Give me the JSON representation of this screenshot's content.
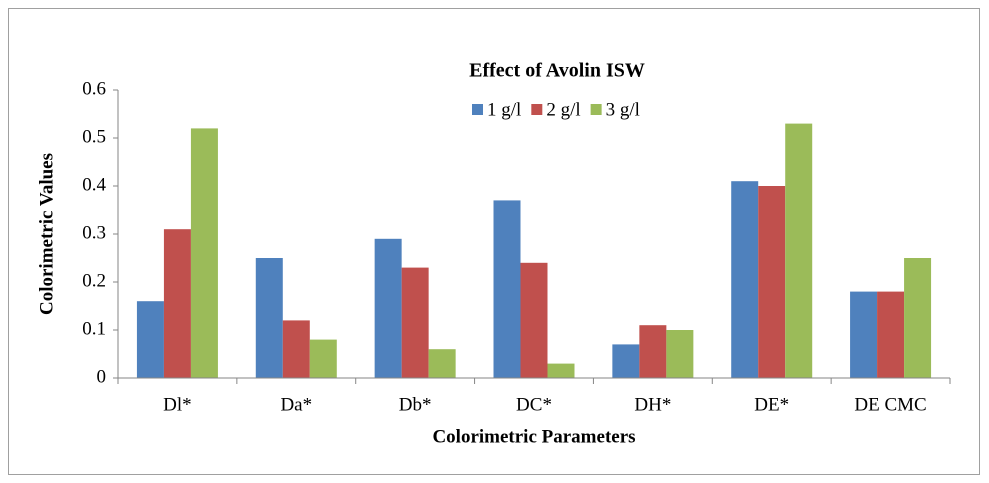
{
  "chart_data": {
    "type": "bar",
    "title": "Effect of Avolin  ISW",
    "x_label": "Colorimetric  Parameters",
    "y_label": "Colorimetric  Values",
    "categories": [
      "Dl*",
      "Da*",
      "Db*",
      "DC*",
      "DH*",
      "DE*",
      "DE CMC"
    ],
    "series": [
      {
        "name": "1 g/l",
        "color": "#4f81bd",
        "values": [
          0.16,
          0.25,
          0.29,
          0.37,
          0.07,
          0.41,
          0.18
        ]
      },
      {
        "name": "2 g/l",
        "color": "#c0504d",
        "values": [
          0.31,
          0.12,
          0.23,
          0.24,
          0.11,
          0.4,
          0.18
        ]
      },
      {
        "name": "3 g/l",
        "color": "#9bbb59",
        "values": [
          0.52,
          0.08,
          0.06,
          0.03,
          0.1,
          0.53,
          0.25
        ]
      }
    ],
    "ylim": [
      0,
      0.6
    ],
    "yticks": [
      0,
      0.1,
      0.2,
      0.3,
      0.4,
      0.5,
      0.6
    ],
    "legend": "top",
    "grid": false
  }
}
